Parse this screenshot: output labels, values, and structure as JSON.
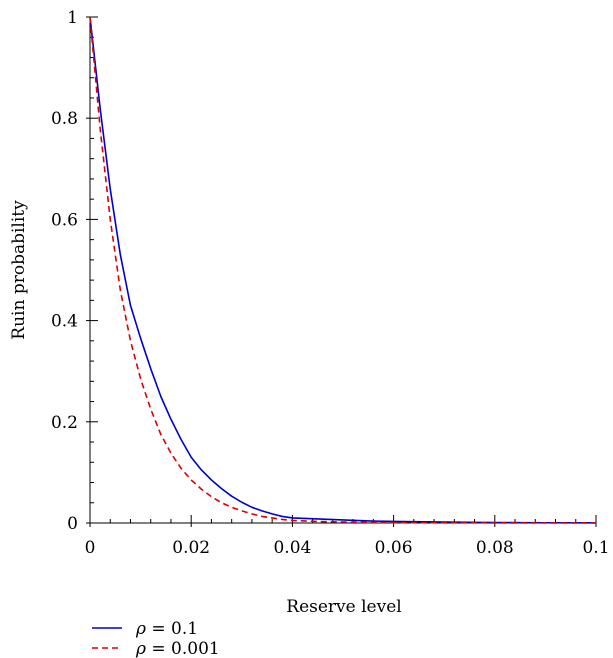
{
  "chart_data": {
    "type": "line",
    "title": "",
    "xlabel": "Reserve level",
    "ylabel": "Ruin probability",
    "xlim": [
      0,
      0.1
    ],
    "ylim": [
      0,
      1
    ],
    "xticks": [
      "0",
      "0.02",
      "0.04",
      "0.06",
      "0.08",
      "0.1"
    ],
    "yticks": [
      "0",
      "0.2",
      "0.4",
      "0.6",
      "0.8",
      "1"
    ],
    "xtick_values": [
      0,
      0.02,
      0.04,
      0.06,
      0.08,
      0.1
    ],
    "ytick_values": [
      0,
      0.2,
      0.4,
      0.6,
      0.8,
      1
    ],
    "grid": false,
    "legend_position": "bottom-left",
    "series": [
      {
        "name": "ρ = 0.1",
        "legend_symbol": "ρ",
        "legend_value": "= 0.1",
        "color": "#0000cc",
        "dash": "solid",
        "x": [
          0,
          0.002,
          0.004,
          0.006,
          0.008,
          0.01,
          0.012,
          0.014,
          0.016,
          0.018,
          0.02,
          0.022,
          0.024,
          0.026,
          0.028,
          0.03,
          0.032,
          0.034,
          0.036,
          0.038,
          0.04,
          0.045,
          0.05,
          0.055,
          0.06,
          0.07,
          0.08,
          0.09,
          0.1
        ],
        "y": [
          1.0,
          0.82,
          0.66,
          0.53,
          0.43,
          0.365,
          0.305,
          0.25,
          0.205,
          0.165,
          0.13,
          0.105,
          0.085,
          0.068,
          0.053,
          0.041,
          0.031,
          0.024,
          0.018,
          0.013,
          0.01,
          0.008,
          0.006,
          0.004,
          0.003,
          0.002,
          0.001,
          0.0005,
          0.0003
        ]
      },
      {
        "name": "ρ = 0.001",
        "legend_symbol": "ρ",
        "legend_value": "= 0.001",
        "color": "#dd0000",
        "dash": "dashed",
        "x": [
          0,
          0.002,
          0.004,
          0.006,
          0.008,
          0.01,
          0.012,
          0.014,
          0.016,
          0.018,
          0.02,
          0.022,
          0.024,
          0.026,
          0.028,
          0.03,
          0.032,
          0.034,
          0.036,
          0.038,
          0.04,
          0.045,
          0.05,
          0.055,
          0.06,
          0.07,
          0.08,
          0.09,
          0.1
        ],
        "y": [
          1.0,
          0.78,
          0.6,
          0.46,
          0.36,
          0.285,
          0.225,
          0.175,
          0.138,
          0.108,
          0.085,
          0.067,
          0.052,
          0.04,
          0.031,
          0.024,
          0.018,
          0.013,
          0.01,
          0.007,
          0.005,
          0.003,
          0.002,
          0.0012,
          0.0008,
          0.0004,
          0.0002,
          0.0001,
          0.0001
        ]
      }
    ]
  }
}
